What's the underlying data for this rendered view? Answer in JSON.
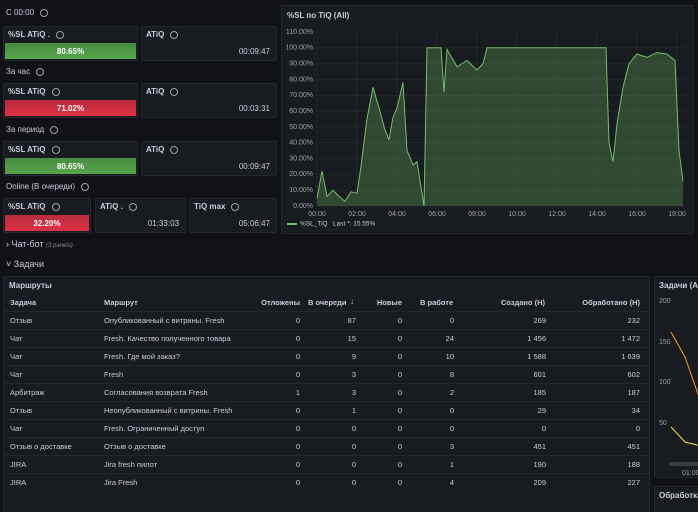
{
  "stat_groups": [
    {
      "label": "С 00:00",
      "panels": [
        {
          "title": "%SL ATiQ .",
          "value": "80.65%",
          "color": "#56a64b"
        },
        {
          "title": "ATiQ",
          "value": "00:09:47"
        }
      ]
    },
    {
      "label": "За час",
      "panels": [
        {
          "title": "%SL ATiQ",
          "value": "71.02%",
          "color": "#e02f44"
        },
        {
          "title": "ATiQ",
          "value": "00:03:31"
        }
      ]
    },
    {
      "label": "За период",
      "panels": [
        {
          "title": "%SL ATiQ",
          "value": "80.65%",
          "color": "#56a64b"
        },
        {
          "title": "ATiQ",
          "value": "00:09:47"
        }
      ]
    },
    {
      "label": "Online (В очереди)",
      "panels": [
        {
          "title": "%SL ATiQ",
          "value": "32.20%",
          "color": "#e02f44"
        },
        {
          "title": "ATiQ .",
          "value": "01:33:03"
        },
        {
          "title": "TiQ max",
          "value": "05:06:47"
        }
      ]
    }
  ],
  "chart_data": {
    "type": "line",
    "title": "%SL по TiQ (All)",
    "xlim": [
      0,
      18.4
    ],
    "ylim": [
      0,
      110
    ],
    "xticks": [
      {
        "value": 0,
        "label": "00:00"
      },
      {
        "value": 2,
        "label": "02:00"
      },
      {
        "value": 4,
        "label": "04:00"
      },
      {
        "value": 6,
        "label": "06:00"
      },
      {
        "value": 8,
        "label": "08:00"
      },
      {
        "value": 10,
        "label": "10:00"
      },
      {
        "value": 12,
        "label": "12:00"
      },
      {
        "value": 14,
        "label": "14:00"
      },
      {
        "value": 16,
        "label": "16:00"
      },
      {
        "value": 18,
        "label": "18:00"
      }
    ],
    "yticks": [
      {
        "value": 0,
        "label": "0.00%"
      },
      {
        "value": 10,
        "label": "10.00%"
      },
      {
        "value": 20,
        "label": "20.00%"
      },
      {
        "value": 30,
        "label": "30.00%"
      },
      {
        "value": 40,
        "label": "40.00%"
      },
      {
        "value": 50,
        "label": "50.00%"
      },
      {
        "value": 60,
        "label": "60.00%"
      },
      {
        "value": 70,
        "label": "70.00%"
      },
      {
        "value": 80,
        "label": "80.00%"
      },
      {
        "value": 90,
        "label": "90.00%"
      },
      {
        "value": 100,
        "label": "100.00%"
      },
      {
        "value": 110,
        "label": "110.00%"
      }
    ],
    "grid": true,
    "x": [
      0,
      0.25,
      0.5,
      0.8,
      1.1,
      1.4,
      1.7,
      2.0,
      2.2,
      2.5,
      2.8,
      3.1,
      3.4,
      3.6,
      3.8,
      4.0,
      4.3,
      4.5,
      4.8,
      5.0,
      5.2,
      5.35,
      5.5,
      6.2,
      6.35,
      6.5,
      7.0,
      7.5,
      8.0,
      8.3,
      8.5,
      9.0,
      10,
      11,
      12,
      13,
      14,
      14.45,
      14.6,
      14.8,
      15.0,
      15.3,
      15.6,
      16,
      16.5,
      17,
      17.5,
      17.9,
      18.1,
      18.3
    ],
    "series": [
      {
        "name": "%SL_TiQ",
        "color": "#73bf69",
        "legend_stat": "Last *: 15.55%",
        "values": [
          5,
          22,
          6,
          10,
          6,
          3,
          9,
          8,
          25,
          55,
          75,
          62,
          48,
          42,
          56,
          62,
          78,
          35,
          26,
          28,
          12,
          0,
          100,
          100,
          72,
          99,
          88,
          92,
          86,
          90,
          100,
          100,
          100,
          100,
          100,
          100,
          100,
          100,
          40,
          28,
          52,
          75,
          90,
          96,
          94,
          97,
          96,
          92,
          35,
          15.55
        ]
      }
    ]
  },
  "rows": [
    {
      "title": "Чат-бот",
      "note": "(3 panels)"
    },
    {
      "title": "Задачи"
    }
  ],
  "table": {
    "title": "Маршруты",
    "headers": [
      "Задача",
      "Маршрут",
      "Отложены",
      "В очереди",
      "Новые",
      "В работе",
      "Создано (Н)",
      "Обработано (Н)"
    ],
    "rows": [
      [
        "Отзыв",
        "Опубликованный с витрины. Fresh",
        "0",
        "87",
        "0",
        "0",
        "269",
        "232"
      ],
      [
        "Чат",
        "Fresh. Качество полученного товара",
        "0",
        "15",
        "0",
        "24",
        "1 456",
        "1 472"
      ],
      [
        "Чат",
        "Fresh. Где мой заказ?",
        "0",
        "9",
        "0",
        "10",
        "1 588",
        "1 639"
      ],
      [
        "Чат",
        "Fresh",
        "0",
        "3",
        "0",
        "8",
        "601",
        "602"
      ],
      [
        "Арбитраж",
        "Согласования возврата Fresh",
        "1",
        "3",
        "0",
        "2",
        "185",
        "187"
      ],
      [
        "Отзыв",
        "Неопубликованный с витрины. Fresh",
        "0",
        "1",
        "0",
        "0",
        "29",
        "34"
      ],
      [
        "Чат",
        "Fresh. Ограниченный доступ",
        "0",
        "0",
        "0",
        "0",
        "0",
        "0"
      ],
      [
        "Отзыв о доставке",
        "Отзыв о доставке",
        "0",
        "0",
        "0",
        "3",
        "451",
        "451"
      ],
      [
        "JIRA",
        "Jira fresh пилот",
        "0",
        "0",
        "0",
        "1",
        "190",
        "188"
      ],
      [
        "JIRA",
        "Jira Fresh",
        "0",
        "0",
        "0",
        "4",
        "209",
        "227"
      ]
    ]
  },
  "side_panel": {
    "title": "Задачи (All",
    "yticks": [
      "200",
      "150",
      "100",
      "50"
    ],
    "xtick": "01:00"
  },
  "side_panel2": {
    "title": "Обработка з"
  }
}
